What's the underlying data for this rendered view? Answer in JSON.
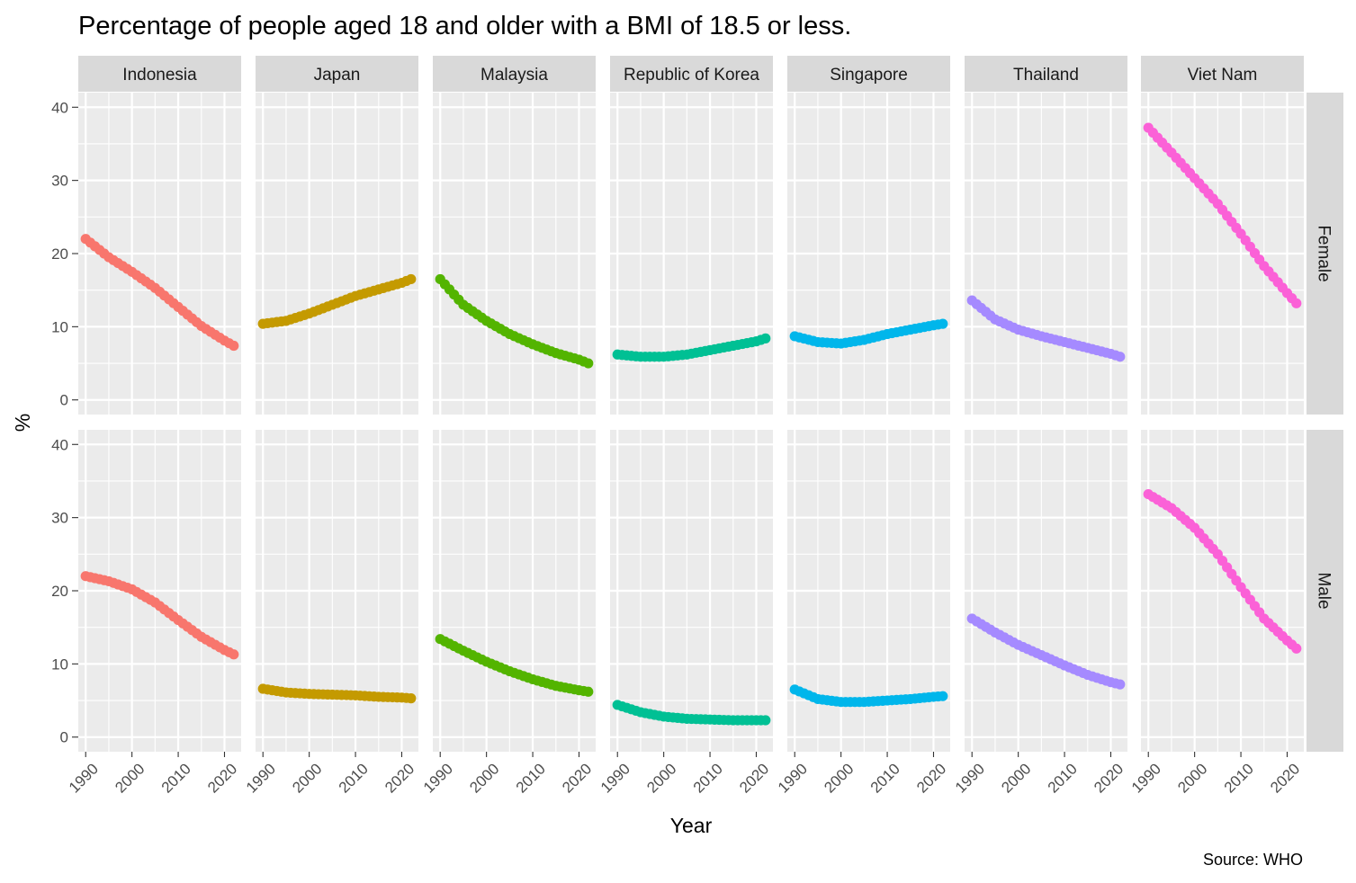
{
  "chart_data": {
    "type": "scatter",
    "title": "Percentage of people aged 18 and older with a BMI of 18.5 or less.",
    "xlabel": "Year",
    "ylabel": "%",
    "caption": "Source: WHO",
    "xlim": [
      1990,
      2022
    ],
    "ylim": [
      0,
      40
    ],
    "x_ticks": [
      1990,
      2000,
      2010,
      2020
    ],
    "y_ticks": [
      0,
      10,
      20,
      30,
      40
    ],
    "grid": true,
    "legend": "none",
    "facet_cols": [
      "Indonesia",
      "Japan",
      "Malaysia",
      "Republic of Korea",
      "Singapore",
      "Thailand",
      "Viet Nam"
    ],
    "facet_rows": [
      "Female",
      "Male"
    ],
    "colors": {
      "Indonesia": "#F8766D",
      "Japan": "#C49A00",
      "Malaysia": "#53B400",
      "Republic of Korea": "#00C094",
      "Singapore": "#00B6EB",
      "Thailand": "#A58AFF",
      "Viet Nam": "#FB61D7"
    },
    "x": [
      1990,
      1995,
      2000,
      2005,
      2010,
      2015,
      2020,
      2022
    ],
    "series": [
      {
        "country": "Indonesia",
        "sex": "Female",
        "values": [
          22.0,
          19.5,
          17.5,
          15.3,
          12.7,
          10.1,
          8.1,
          7.4
        ]
      },
      {
        "country": "Japan",
        "sex": "Female",
        "values": [
          10.4,
          10.8,
          11.8,
          13.0,
          14.2,
          15.1,
          16.0,
          16.5
        ]
      },
      {
        "country": "Malaysia",
        "sex": "Female",
        "values": [
          16.5,
          13.0,
          10.8,
          9.0,
          7.6,
          6.4,
          5.5,
          5.0
        ]
      },
      {
        "country": "Republic of Korea",
        "sex": "Female",
        "values": [
          6.2,
          5.9,
          5.9,
          6.2,
          6.8,
          7.4,
          8.0,
          8.4
        ]
      },
      {
        "country": "Singapore",
        "sex": "Female",
        "values": [
          8.7,
          7.9,
          7.7,
          8.2,
          9.0,
          9.6,
          10.2,
          10.4
        ]
      },
      {
        "country": "Thailand",
        "sex": "Female",
        "values": [
          13.6,
          11.0,
          9.6,
          8.7,
          7.9,
          7.1,
          6.3,
          5.9
        ]
      },
      {
        "country": "Viet Nam",
        "sex": "Female",
        "values": [
          37.2,
          33.8,
          30.3,
          26.8,
          22.7,
          18.3,
          14.6,
          13.2
        ]
      },
      {
        "country": "Indonesia",
        "sex": "Male",
        "values": [
          22.0,
          21.3,
          20.2,
          18.4,
          16.0,
          13.7,
          11.9,
          11.3
        ]
      },
      {
        "country": "Japan",
        "sex": "Male",
        "values": [
          6.6,
          6.1,
          5.9,
          5.8,
          5.7,
          5.5,
          5.4,
          5.3
        ]
      },
      {
        "country": "Malaysia",
        "sex": "Male",
        "values": [
          13.4,
          11.8,
          10.3,
          9.0,
          7.9,
          7.0,
          6.4,
          6.2
        ]
      },
      {
        "country": "Republic of Korea",
        "sex": "Male",
        "values": [
          4.4,
          3.4,
          2.8,
          2.5,
          2.4,
          2.3,
          2.3,
          2.3
        ]
      },
      {
        "country": "Singapore",
        "sex": "Male",
        "values": [
          6.5,
          5.2,
          4.8,
          4.8,
          5.0,
          5.2,
          5.5,
          5.6
        ]
      },
      {
        "country": "Thailand",
        "sex": "Male",
        "values": [
          16.2,
          14.3,
          12.6,
          11.2,
          9.8,
          8.5,
          7.5,
          7.2
        ]
      },
      {
        "country": "Viet Nam",
        "sex": "Male",
        "values": [
          33.2,
          31.3,
          28.6,
          25.0,
          20.5,
          16.2,
          13.2,
          12.1
        ]
      }
    ]
  }
}
